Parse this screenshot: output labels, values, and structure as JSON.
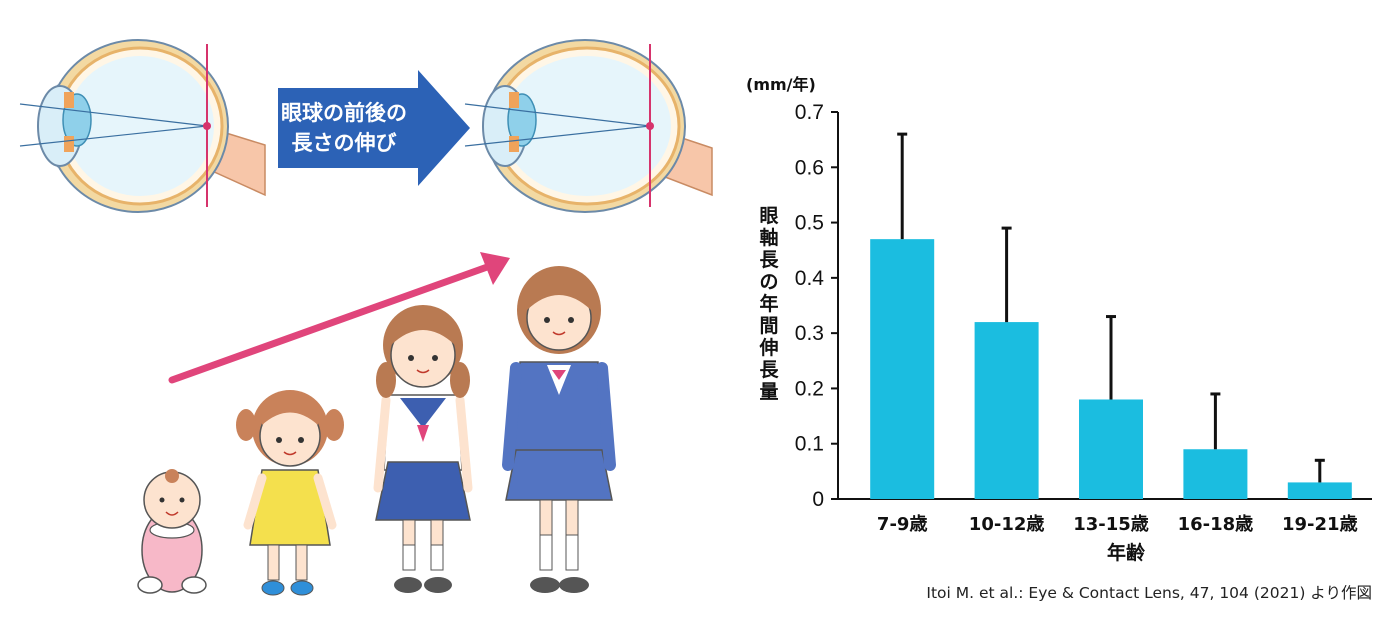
{
  "illustration": {
    "arrow_label_line1": "眼球の前後の",
    "arrow_label_line2": "長さの伸び"
  },
  "chart_data": {
    "type": "bar",
    "categories": [
      "7-9歳",
      "10-12歳",
      "13-15歳",
      "16-18歳",
      "19-21歳"
    ],
    "values": [
      0.47,
      0.32,
      0.18,
      0.09,
      0.03
    ],
    "error_upper": [
      0.66,
      0.49,
      0.33,
      0.19,
      0.07
    ],
    "ylim": [
      0,
      0.7
    ],
    "yticks": [
      "0",
      "0.1",
      "0.2",
      "0.3",
      "0.4",
      "0.5",
      "0.6",
      "0.7"
    ],
    "ylabel": "眼軸長の年間伸長量",
    "yunit": "(mm/年)",
    "xlabel": "年齢",
    "bar_color": "#1bbde0",
    "source": "Itoi M. et al.: Eye & Contact Lens, 47, 104 (2021) より作図"
  }
}
